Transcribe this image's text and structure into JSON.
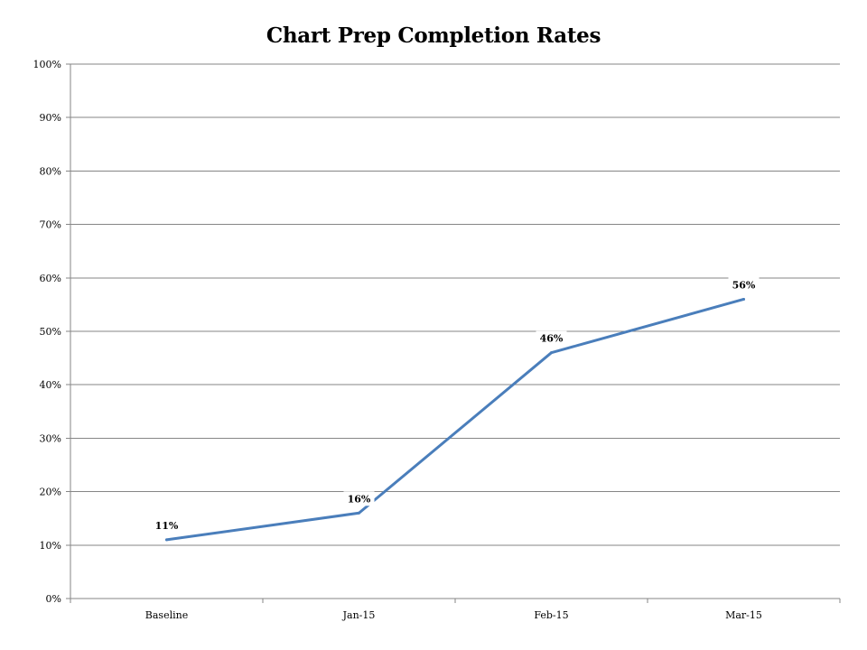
{
  "chart_data": {
    "type": "line",
    "title": "Chart Prep Completion Rates",
    "xlabel": "",
    "ylabel": "",
    "categories": [
      "Baseline",
      "Jan-15",
      "Feb-15",
      "Mar-15"
    ],
    "series": [
      {
        "values": [
          0.11,
          0.16,
          0.46,
          0.56
        ],
        "labels": [
          "11%",
          "16%",
          "46%",
          "56%"
        ],
        "color": "#4a7ebb"
      }
    ],
    "ylim": [
      0,
      1
    ],
    "yticks": [
      0,
      0.1,
      0.2,
      0.3,
      0.4,
      0.5,
      0.6,
      0.7,
      0.8,
      0.9,
      1.0
    ],
    "ytick_labels": [
      "0%",
      "10%",
      "20%",
      "30%",
      "40%",
      "50%",
      "60%",
      "70%",
      "80%",
      "90%",
      "100%"
    ],
    "grid": true,
    "legend": "none",
    "gridline_color": "#868686"
  }
}
